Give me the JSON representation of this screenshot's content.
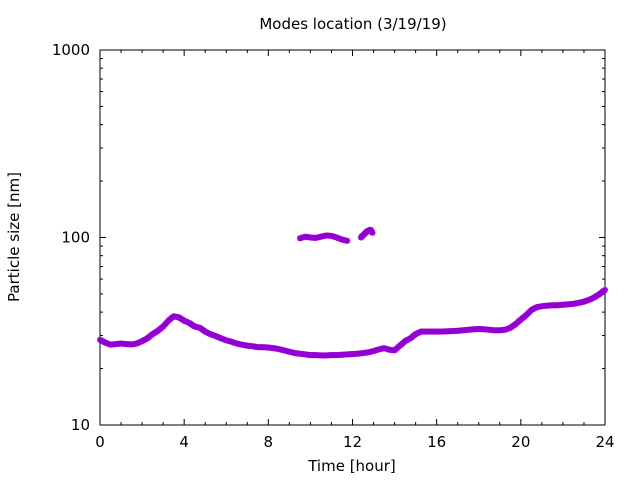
{
  "chart_data": {
    "type": "scatter",
    "title": "Modes location (3/19/19)",
    "xlabel": "Time [hour]",
    "ylabel": "Particle size [nm]",
    "xlim": [
      0,
      24
    ],
    "ylim": [
      10,
      1000
    ],
    "yscale": "log",
    "xticks": [
      0,
      4,
      8,
      12,
      16,
      20,
      24
    ],
    "xtick_labels": [
      "0",
      "4",
      "8",
      "12",
      "16",
      "20",
      "24"
    ],
    "yticks": [
      10,
      100,
      1000
    ],
    "ytick_labels": [
      "10",
      "100",
      "1000"
    ],
    "grid": false,
    "legend": "none",
    "marker_color": "#9400d3",
    "series": [
      {
        "x": [
          0.0,
          0.25,
          0.5,
          0.75,
          1.0,
          1.25,
          1.5,
          1.75,
          2.0,
          2.25,
          2.5,
          2.75,
          3.0,
          3.25,
          3.5,
          3.75,
          4.0,
          4.25,
          4.5,
          4.75,
          5.0,
          5.25,
          5.5,
          5.75,
          6.0,
          6.25,
          6.5,
          6.75,
          7.0,
          7.25,
          7.5,
          7.75,
          8.0,
          8.25,
          8.5,
          8.75,
          9.0,
          9.25,
          9.5,
          9.75,
          10.0,
          10.25,
          10.5,
          10.75,
          11.0,
          11.25,
          11.5,
          11.75,
          12.0,
          12.25,
          12.5,
          12.75,
          13.0,
          13.25,
          13.5,
          13.75,
          14.0,
          14.25,
          14.5,
          14.75,
          15.0,
          15.25,
          15.5,
          15.75,
          16.0,
          16.25,
          16.5,
          16.75,
          17.0,
          17.25,
          17.5,
          17.75,
          18.0,
          18.25,
          18.5,
          18.75,
          19.0,
          19.25,
          19.5,
          19.75,
          20.0,
          20.25,
          20.5,
          20.75,
          21.0,
          21.25,
          21.5,
          21.75,
          22.0,
          22.25,
          22.5,
          22.75,
          23.0,
          23.25,
          23.5,
          23.75,
          24.0
        ],
        "values": [
          28.5,
          27.5,
          26.8,
          27.0,
          27.2,
          27.0,
          26.9,
          27.2,
          28.0,
          29.0,
          30.5,
          31.8,
          33.5,
          36.0,
          38.0,
          37.5,
          36.0,
          35.0,
          33.5,
          33.0,
          31.5,
          30.5,
          29.8,
          29.0,
          28.3,
          27.8,
          27.2,
          26.8,
          26.5,
          26.3,
          26.0,
          26.0,
          25.9,
          25.7,
          25.4,
          25.0,
          24.6,
          24.2,
          24.0,
          23.8,
          23.6,
          23.6,
          23.5,
          23.5,
          23.6,
          23.6,
          23.7,
          23.8,
          23.9,
          24.0,
          24.2,
          24.4,
          24.8,
          25.3,
          25.7,
          25.2,
          25.0,
          26.5,
          28.0,
          29.0,
          30.5,
          31.5,
          31.5,
          31.5,
          31.5,
          31.5,
          31.6,
          31.7,
          31.8,
          32.0,
          32.2,
          32.4,
          32.5,
          32.4,
          32.2,
          32.0,
          32.0,
          32.2,
          33.0,
          34.5,
          36.5,
          38.5,
          41.0,
          42.5,
          43.0,
          43.3,
          43.5,
          43.5,
          43.8,
          44.0,
          44.3,
          44.8,
          45.5,
          46.5,
          48.0,
          50.0,
          52.5
        ]
      },
      {
        "x": [
          9.5,
          9.75,
          10.0,
          10.25,
          10.5,
          10.75,
          11.0,
          11.25,
          11.5,
          11.75
        ],
        "values": [
          99,
          101,
          100,
          99.5,
          101,
          102.5,
          102,
          100,
          97.5,
          96
        ]
      },
      {
        "x": [
          12.4,
          12.55,
          12.7,
          12.85,
          12.95
        ],
        "values": [
          100,
          104,
          108,
          110,
          106
        ]
      }
    ]
  }
}
